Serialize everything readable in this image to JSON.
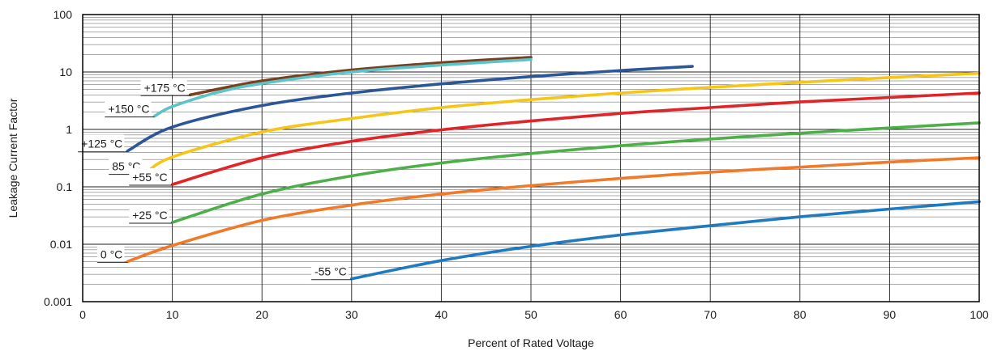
{
  "chart_data": {
    "type": "line",
    "title": "",
    "xlabel": "Percent of Rated Voltage",
    "ylabel": "Leakage Current Factor",
    "xlim": [
      0,
      100
    ],
    "ylim": [
      0.001,
      100
    ],
    "yscale": "log",
    "grid": true,
    "legend": "inline-labels",
    "x_ticks": [
      "0",
      "10",
      "20",
      "30",
      "40",
      "50",
      "60",
      "70",
      "80",
      "90",
      "100"
    ],
    "y_ticks": [
      "0.001",
      "0.01",
      "0.1",
      "1",
      "10",
      "100"
    ],
    "series": [
      {
        "name": "+175 °C",
        "color": "#7b3f1e",
        "x": [
          12,
          20,
          30,
          40,
          50
        ],
        "y": [
          4.0,
          7.0,
          10.8,
          14.5,
          18.0
        ]
      },
      {
        "name": "+150 °C",
        "color": "#5bc4c9",
        "x": [
          8,
          10,
          15,
          20,
          30,
          40,
          50
        ],
        "y": [
          1.7,
          2.5,
          4.4,
          6.3,
          10.0,
          13.2,
          16.5
        ]
      },
      {
        "name": "+125 °C",
        "color": "#2b5698",
        "x": [
          5,
          10,
          20,
          30,
          40,
          50,
          60,
          68
        ],
        "y": [
          0.42,
          1.1,
          2.6,
          4.3,
          6.2,
          8.3,
          10.6,
          12.5
        ]
      },
      {
        "name": "85 °C",
        "color": "#f5c518",
        "x": [
          7,
          10,
          20,
          30,
          40,
          50,
          60,
          70,
          80,
          90,
          100
        ],
        "y": [
          0.17,
          0.33,
          0.9,
          1.55,
          2.4,
          3.3,
          4.3,
          5.4,
          6.6,
          8.0,
          9.5
        ]
      },
      {
        "name": "+55 °C",
        "color": "#e02427",
        "x": [
          10,
          20,
          30,
          40,
          50,
          60,
          70,
          80,
          90,
          100
        ],
        "y": [
          0.11,
          0.32,
          0.62,
          0.98,
          1.4,
          1.9,
          2.4,
          3.0,
          3.6,
          4.3
        ]
      },
      {
        "name": "+25 °C",
        "color": "#4caf47",
        "x": [
          10,
          20,
          30,
          40,
          50,
          60,
          70,
          80,
          90,
          100
        ],
        "y": [
          0.024,
          0.075,
          0.155,
          0.26,
          0.38,
          0.52,
          0.68,
          0.86,
          1.06,
          1.3
        ]
      },
      {
        "name": "0 °C",
        "color": "#f07a2a",
        "x": [
          5,
          10,
          20,
          30,
          40,
          50,
          60,
          70,
          80,
          90,
          100
        ],
        "y": [
          0.005,
          0.0095,
          0.026,
          0.048,
          0.075,
          0.105,
          0.14,
          0.18,
          0.22,
          0.27,
          0.32
        ]
      },
      {
        "name": "-55 °C",
        "color": "#1f7ac0",
        "x": [
          30,
          40,
          50,
          60,
          70,
          80,
          90,
          100
        ],
        "y": [
          0.0025,
          0.0052,
          0.0092,
          0.0145,
          0.021,
          0.03,
          0.041,
          0.055
        ]
      }
    ]
  }
}
